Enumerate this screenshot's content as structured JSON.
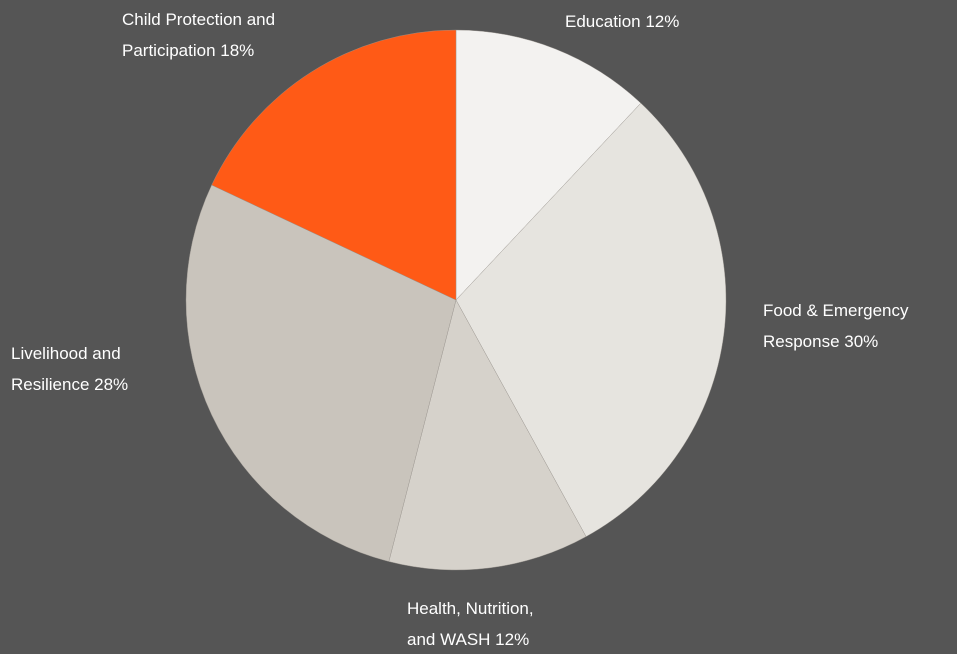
{
  "chart_data": {
    "type": "pie",
    "start_angle_deg": 0,
    "direction": "clockwise",
    "slices": [
      {
        "name": "Education",
        "value": 12,
        "color": "#f3f2f0",
        "label_lines": [
          "Education  12%"
        ]
      },
      {
        "name": "Food & Emergency Response",
        "value": 30,
        "color": "#e6e4df",
        "label_lines": [
          "Food & Emergency",
          "Response 30%"
        ]
      },
      {
        "name": "Health, Nutrition, and WASH",
        "value": 12,
        "color": "#d6d2cb",
        "label_lines": [
          "Health, Nutrition,",
          "and WASH 12%"
        ]
      },
      {
        "name": "Livelihood and Resilience",
        "value": 28,
        "color": "#c9c4bc",
        "label_lines": [
          "Livelihood and",
          "Resilience  28%"
        ]
      },
      {
        "name": "Child Protection and Participation",
        "value": 18,
        "color": "#ff5a16",
        "label_lines": [
          "Child Protection and",
          "Participation 18%"
        ]
      }
    ],
    "background": "#555555",
    "label_color": "#ffffff",
    "legend": "none"
  }
}
